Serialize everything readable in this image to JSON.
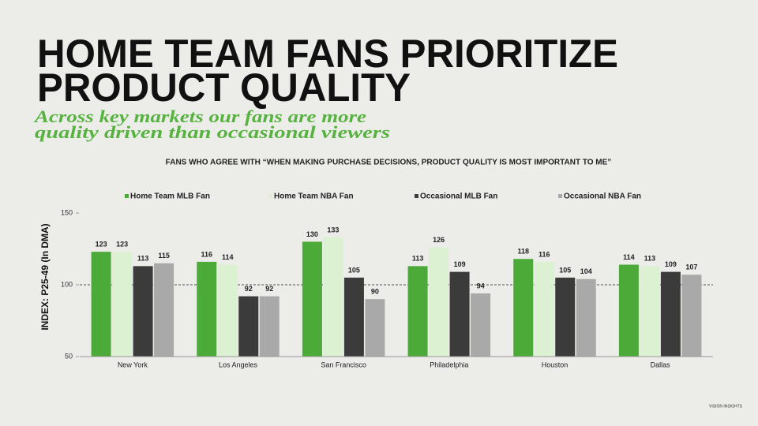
{
  "chart_data": {
    "type": "bar",
    "title": [
      "HOME TEAM FANS PRIORITIZE",
      "PRODUCT QUALITY"
    ],
    "subtitle": [
      "Across key markets our fans are more",
      "quality driven than occasional viewers"
    ],
    "chart_title": "FANS WHO AGREE WITH “WHEN MAKING PURCHASE DECISIONS, PRODUCT QUALITY IS MOST IMPORTANT TO ME”",
    "y_label": "INDEX: P25-49 (In DMA)",
    "categories": [
      "New York",
      "Los Angeles",
      "San Francisco",
      "Philadelphia",
      "Houston",
      "Dallas"
    ],
    "series": [
      {
        "name": "Home Team MLB Fan",
        "color": "#4caa38",
        "values": [
          123,
          116,
          130,
          113,
          118,
          114
        ]
      },
      {
        "name": "Home Team NBA Fan",
        "color": "#dcf1d2",
        "values": [
          123,
          114,
          133,
          126,
          116,
          113
        ]
      },
      {
        "name": "Occasional MLB Fan",
        "color": "#3b3b3b",
        "values": [
          113,
          92,
          105,
          109,
          105,
          109
        ]
      },
      {
        "name": "Occasional NBA Fan",
        "color": "#a9a9a9",
        "values": [
          115,
          92,
          90,
          94,
          104,
          107
        ]
      }
    ],
    "ylim": [
      50,
      150
    ],
    "yticks": [
      50,
      100,
      150
    ],
    "reference_line": 100,
    "logo": "VISION INSIGHTS"
  }
}
